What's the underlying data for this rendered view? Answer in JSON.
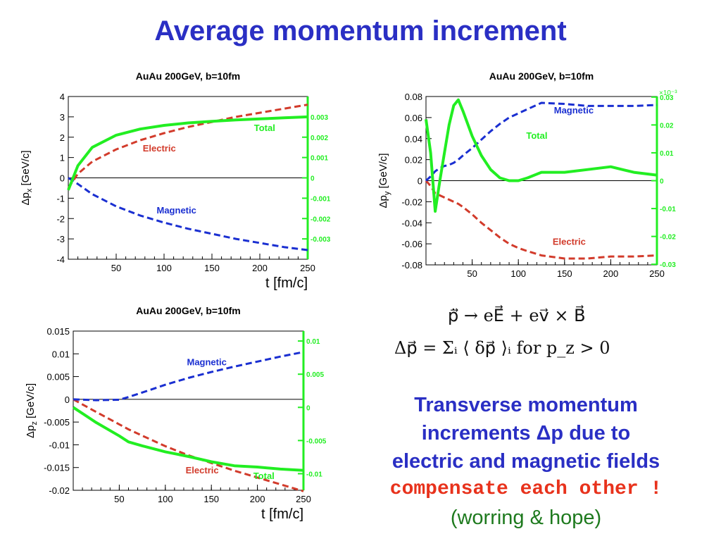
{
  "slide": {
    "title": "Average momentum increment",
    "equation_motion": "ṗ⃗ → eE⃗ + ev⃗ × B⃗",
    "equation_sum": "Δp⃗ = Σᵢ ⟨ δp⃗ ⟩ᵢ      for  p_z > 0",
    "conclusion_line1": "Transverse momentum",
    "conclusion_line2": "increments  Δp due to",
    "conclusion_line3": "electric and magnetic fields",
    "conclusion_emphasis": "compensate each other !",
    "conclusion_note": "(worring  &   hope)"
  },
  "colors": {
    "title": "#2a2fc4",
    "electric": "#d23b2b",
    "magnetic": "#1a2fd1",
    "total": "#22ee22",
    "right_axis": "#22ee22"
  },
  "chart_data": [
    {
      "type": "line",
      "title": "AuAu 200GeV, b=10fm",
      "xlabel": "t  [fm/c]",
      "ylabel": "Δp_x  [GeV/c]",
      "xlim": [
        0,
        250
      ],
      "ylim": [
        -4,
        4
      ],
      "xticks": [
        50,
        100,
        150,
        200,
        250
      ],
      "yticks": [
        -4,
        -3,
        -2,
        -1,
        0,
        1,
        2,
        3,
        4
      ],
      "right_axis": {
        "ylim": [
          -0.004,
          0.004
        ],
        "ticks": [
          -0.003,
          -0.002,
          -0.001,
          0,
          0.001,
          0.002,
          0.003
        ]
      },
      "x": [
        0,
        10,
        25,
        50,
        75,
        100,
        125,
        150,
        175,
        200,
        225,
        250
      ],
      "series": [
        {
          "name": "Electric",
          "axis": "left",
          "values": [
            -0.5,
            0.2,
            0.8,
            1.4,
            1.85,
            2.2,
            2.5,
            2.75,
            3.0,
            3.2,
            3.4,
            3.6
          ]
        },
        {
          "name": "Magnetic",
          "axis": "left",
          "values": [
            0,
            -0.3,
            -0.8,
            -1.4,
            -1.85,
            -2.2,
            -2.5,
            -2.75,
            -3.0,
            -3.2,
            -3.4,
            -3.55
          ]
        },
        {
          "name": "Total",
          "axis": "right",
          "values": [
            -0.0006,
            0.0006,
            0.0015,
            0.0021,
            0.0024,
            0.00258,
            0.0027,
            0.00278,
            0.00285,
            0.0029,
            0.00295,
            0.003
          ]
        }
      ],
      "labels": [
        {
          "text": "Electric",
          "x": 95,
          "y": 1.3
        },
        {
          "text": "Magnetic",
          "x": 113,
          "y": -1.75
        },
        {
          "text": "Total",
          "x": 205,
          "y": 0.0023
        }
      ]
    },
    {
      "type": "line",
      "title": "AuAu 200GeV, b=10fm",
      "xlabel": "",
      "ylabel": "Δp_y  [GeV/c]",
      "xlim": [
        0,
        250
      ],
      "ylim": [
        -0.08,
        0.08
      ],
      "xticks": [
        50,
        100,
        150,
        200,
        250
      ],
      "yticks": [
        -0.08,
        -0.06,
        -0.04,
        -0.02,
        0,
        0.02,
        0.04,
        0.06,
        0.08
      ],
      "right_axis": {
        "ylim": [
          -0.0302,
          0.0302
        ],
        "ticks": [
          -0.03,
          -0.02,
          -0.01,
          0,
          0.01,
          0.02,
          0.03
        ],
        "exponent": "×10⁻³"
      },
      "x": [
        0,
        5,
        10,
        15,
        20,
        25,
        30,
        35,
        40,
        50,
        60,
        70,
        80,
        90,
        100,
        110,
        125,
        150,
        175,
        200,
        225,
        250
      ],
      "series": [
        {
          "name": "Electric",
          "axis": "left",
          "values": [
            0,
            -0.005,
            -0.012,
            -0.014,
            -0.016,
            -0.018,
            -0.02,
            -0.022,
            -0.025,
            -0.032,
            -0.04,
            -0.047,
            -0.054,
            -0.06,
            -0.064,
            -0.067,
            -0.071,
            -0.074,
            -0.074,
            -0.072,
            -0.072,
            -0.071
          ]
        },
        {
          "name": "Magnetic",
          "axis": "left",
          "values": [
            0,
            0.004,
            0.009,
            0.012,
            0.014,
            0.015,
            0.017,
            0.02,
            0.024,
            0.031,
            0.039,
            0.047,
            0.054,
            0.06,
            0.064,
            0.068,
            0.074,
            0.073,
            0.071,
            0.071,
            0.071,
            0.072
          ]
        },
        {
          "name": "Total",
          "axis": "right",
          "values": [
            0.022,
            0.01,
            -0.011,
            0.0,
            0.01,
            0.02,
            0.027,
            0.029,
            0.025,
            0.016,
            0.009,
            0.004,
            0.001,
            0.0,
            0.0,
            0.001,
            0.003,
            0.003,
            0.004,
            0.005,
            0.003,
            0.002
          ]
        }
      ],
      "labels": [
        {
          "text": "Magnetic",
          "x": 160,
          "y": 0.064
        },
        {
          "text": "Total",
          "x": 120,
          "y": 0.015
        },
        {
          "text": "Electric",
          "x": 155,
          "y": -0.061
        }
      ]
    },
    {
      "type": "line",
      "title": "AuAu 200GeV, b=10fm",
      "xlabel": "t  [fm/c]",
      "ylabel": "Δp_z  [GeV/c]",
      "xlim": [
        0,
        250
      ],
      "ylim": [
        -0.02,
        0.015
      ],
      "xticks": [
        50,
        100,
        150,
        200,
        250
      ],
      "yticks": [
        -0.02,
        -0.015,
        -0.01,
        -0.005,
        0,
        0.005,
        0.01,
        0.015
      ],
      "right_axis": {
        "ylim": [
          -0.0125,
          0.0115
        ],
        "ticks": [
          -0.01,
          -0.005,
          0,
          0.005,
          0.01
        ]
      },
      "x": [
        0,
        25,
        50,
        60,
        75,
        100,
        125,
        150,
        175,
        200,
        225,
        250
      ],
      "series": [
        {
          "name": "Electric",
          "axis": "left",
          "values": [
            0,
            -0.0028,
            -0.0055,
            -0.0066,
            -0.008,
            -0.0103,
            -0.0123,
            -0.014,
            -0.0157,
            -0.0172,
            -0.0187,
            -0.0202
          ]
        },
        {
          "name": "Magnetic",
          "axis": "left",
          "values": [
            0,
            -0.0002,
            -0.0001,
            0.0005,
            0.0015,
            0.0032,
            0.0047,
            0.006,
            0.0072,
            0.0083,
            0.0094,
            0.0104
          ]
        },
        {
          "name": "Total",
          "axis": "right",
          "values": [
            0,
            -0.0023,
            -0.0043,
            -0.0052,
            -0.0058,
            -0.0067,
            -0.0074,
            -0.0082,
            -0.0088,
            -0.009,
            -0.0093,
            -0.0095
          ]
        }
      ],
      "labels": [
        {
          "text": "Magnetic",
          "x": 145,
          "y": 0.0075
        },
        {
          "text": "Total",
          "x": 207,
          "y": -0.0108
        },
        {
          "text": "Electric",
          "x": 140,
          "y": -0.0163
        }
      ]
    }
  ]
}
